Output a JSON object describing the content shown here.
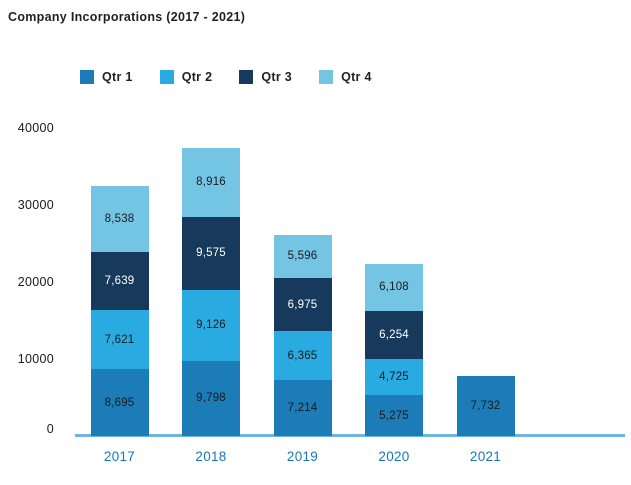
{
  "title": "Company Incorporations (2017 - 2021)",
  "chart_data": {
    "type": "bar",
    "stacked": true,
    "title": "Company Incorporations (2017 - 2021)",
    "categories": [
      "2017",
      "2018",
      "2019",
      "2020",
      "2021"
    ],
    "series": [
      {
        "name": "Qtr 1",
        "color": "#1c7cb8",
        "label_color": "#1a1a1a",
        "values": [
          8695,
          9798,
          7214,
          5275,
          7732
        ]
      },
      {
        "name": "Qtr 2",
        "color": "#29abe2",
        "label_color": "#1a1a1a",
        "values": [
          7621,
          9126,
          6365,
          4725,
          0
        ]
      },
      {
        "name": "Qtr 3",
        "color": "#16395c",
        "label_color": "#ffffff",
        "values": [
          7639,
          9575,
          6975,
          6254,
          0
        ]
      },
      {
        "name": "Qtr 4",
        "color": "#74c5e4",
        "label_color": "#1a1a1a",
        "values": [
          8538,
          8916,
          5596,
          6108,
          0
        ]
      }
    ],
    "data_labels": [
      [
        "8,695",
        "9,798",
        "7,214",
        "5,275",
        "7,732"
      ],
      [
        "7,621",
        "9,126",
        "6,365",
        "4,725",
        ""
      ],
      [
        "7,639",
        "9,575",
        "6,975",
        "6,254",
        ""
      ],
      [
        "8,538",
        "8,916",
        "5,596",
        "6,108",
        ""
      ]
    ],
    "y_ticks": [
      "0",
      "10000",
      "20000",
      "30000",
      "40000"
    ],
    "y_tick_values": [
      0,
      10000,
      20000,
      30000,
      40000
    ],
    "ylim": [
      0,
      40000
    ],
    "legend_position": "top",
    "grid": false,
    "axis_line_color": "#6cb5dc",
    "category_label_color": "#1b75bc",
    "tick_label_color": "#1a1a1a",
    "title_color": "#231f20"
  }
}
